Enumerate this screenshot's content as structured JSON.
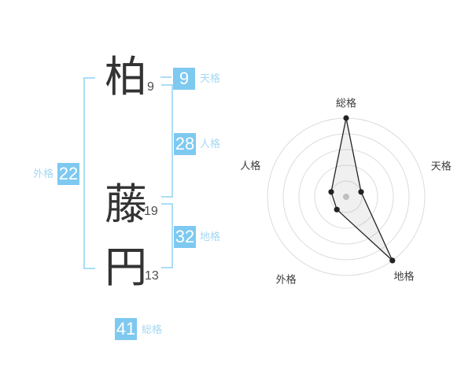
{
  "name": {
    "characters": [
      {
        "char": "柏",
        "strokes": "9"
      },
      {
        "char": "藤",
        "strokes": "19"
      },
      {
        "char": "円",
        "strokes": "13"
      }
    ]
  },
  "kaku": {
    "tenkaku": {
      "label": "天格",
      "value": "9"
    },
    "jinkaku": {
      "label": "人格",
      "value": "28"
    },
    "chikaku": {
      "label": "地格",
      "value": "32"
    },
    "gaikaku": {
      "label": "外格",
      "value": "22"
    },
    "soukaku": {
      "label": "総格",
      "value": "41"
    }
  },
  "colors": {
    "badge_bg": "#7ec9f0",
    "badge_text": "#ffffff",
    "label_text": "#a5d7f3",
    "bracket": "#abdef7",
    "kanji": "#333333",
    "stroke_count": "#4d4d4d",
    "chart_ring": "#dcdcdc",
    "chart_line": "#222222",
    "chart_fill": "rgba(150,150,150,0.14)",
    "chart_center_dot": "#c6c6c6",
    "chart_label": "#3b3b3b"
  },
  "chart_data": {
    "type": "radar",
    "axes": [
      "総格",
      "天格",
      "地格",
      "外格",
      "人格"
    ],
    "raw_values": [
      41,
      9,
      32,
      22,
      28
    ],
    "scores": [
      5,
      1,
      5,
      1,
      1
    ],
    "score_max": 5,
    "rings": 5,
    "grid": "concentric-circles",
    "legend": false
  }
}
